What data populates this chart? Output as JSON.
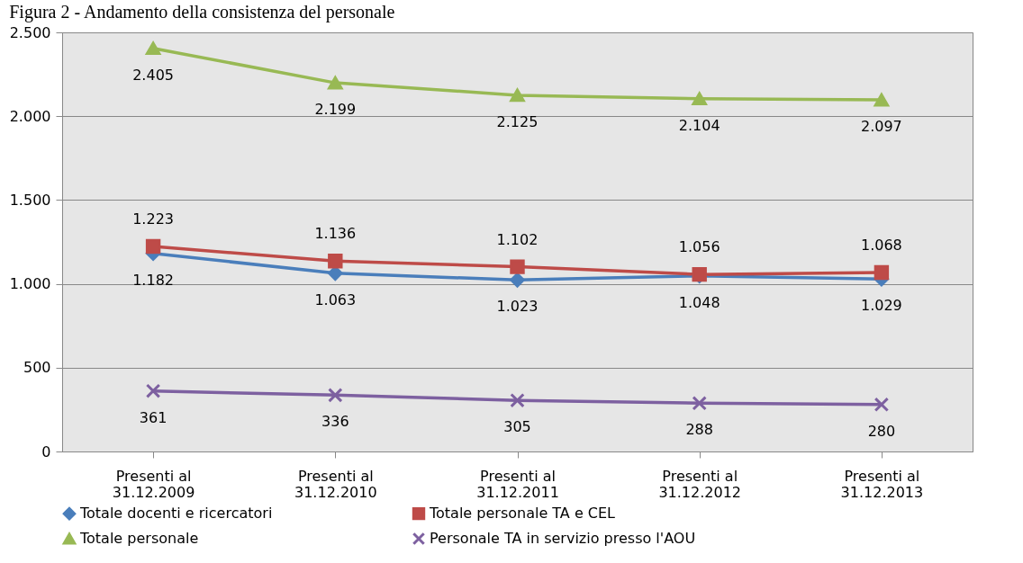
{
  "chart_data": {
    "type": "line",
    "title": "Figura 2 - Andamento della consistenza del personale",
    "categories": [
      "Presenti al 31.12.2009",
      "Presenti al 31.12.2010",
      "Presenti al 31.12.2011",
      "Presenti al 31.12.2012",
      "Presenti al 31.12.2013"
    ],
    "series": [
      {
        "name": "Totale docenti e ricercatori",
        "color": "#4a7ebb",
        "marker": "diamond",
        "values": [
          1182,
          1063,
          1023,
          1048,
          1029
        ],
        "value_labels": [
          "1.182",
          "1.063",
          "1.023",
          "1.048",
          "1.029"
        ]
      },
      {
        "name": "Totale personale TA e CEL",
        "color": "#be4b48",
        "marker": "square",
        "values": [
          1223,
          1136,
          1102,
          1056,
          1068
        ],
        "value_labels": [
          "1.223",
          "1.136",
          "1.102",
          "1.056",
          "1.068"
        ]
      },
      {
        "name": "Totale personale",
        "color": "#98b954",
        "marker": "triangle",
        "values": [
          2405,
          2199,
          2125,
          2104,
          2097
        ],
        "value_labels": [
          "2.405",
          "2.199",
          "2.125",
          "2.104",
          "2.097"
        ]
      },
      {
        "name": "Personale TA in servizio presso l'AOU",
        "color": "#7d60a0",
        "marker": "cross",
        "values": [
          361,
          336,
          305,
          288,
          280
        ],
        "value_labels": [
          "361",
          "336",
          "305",
          "288",
          "280"
        ]
      }
    ],
    "ylim": [
      0,
      2500
    ],
    "yticks": [
      0,
      500,
      {
        "value": 1000,
        "label": "1.000"
      },
      {
        "value": 1500,
        "label": "1.500"
      },
      {
        "value": 2000,
        "label": "2.000"
      },
      {
        "value": 2500,
        "label": "2.500"
      }
    ],
    "grid": "y",
    "legend": "bottom",
    "line_style": "solid"
  }
}
